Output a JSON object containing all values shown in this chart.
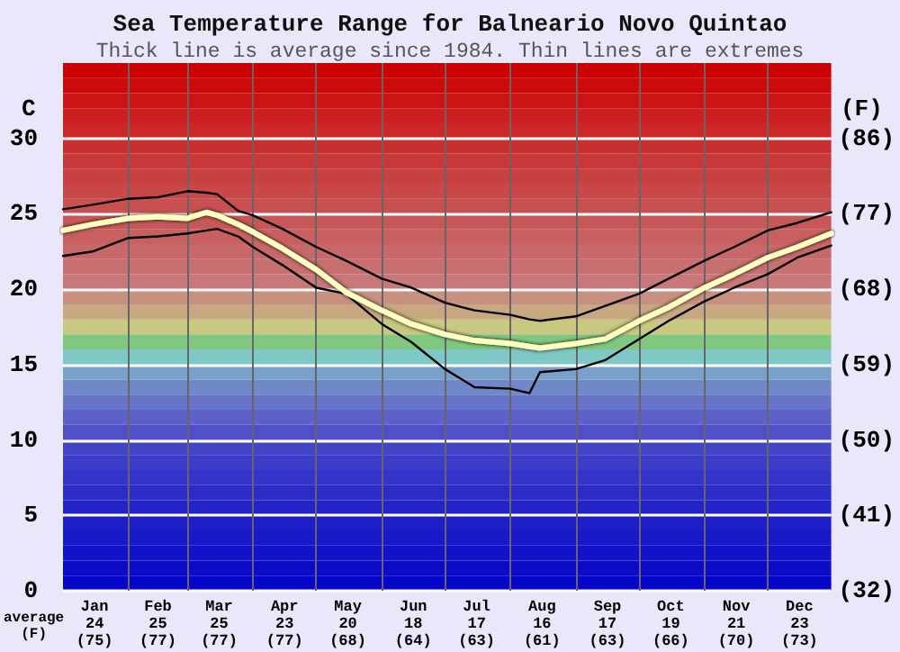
{
  "chart_data": {
    "type": "line",
    "title": "Sea Temperature Range for Balneario Novo Quintao",
    "subtitle": "Thick line is average since 1984. Thin lines are extremes",
    "ylabel": "C",
    "y2label": "(F)",
    "annotations": [
      "average\n(F)"
    ],
    "xlim": [
      "--01-01",
      "--12-31"
    ],
    "xticks": [
      {
        "value": "--01-16",
        "label": "Jan\n24\n(75)"
      },
      {
        "value": "--02-01",
        "label": null
      },
      {
        "value": "--02-15",
        "label": "Feb\n25\n(77)"
      },
      {
        "value": "--03-01",
        "label": null
      },
      {
        "value": "--03-16",
        "label": "Mar\n25\n(77)"
      },
      {
        "value": "--04-01",
        "label": null
      },
      {
        "value": "--04-16",
        "label": "Apr\n23\n(77)"
      },
      {
        "value": "--05-01",
        "label": null
      },
      {
        "value": "--05-16",
        "label": "May\n20\n(68)"
      },
      {
        "value": "--06-01",
        "label": null
      },
      {
        "value": "--06-16",
        "label": "Jun\n18\n(64)"
      },
      {
        "value": "--07-01",
        "label": null
      },
      {
        "value": "--07-16",
        "label": "Jul\n17\n(63)"
      },
      {
        "value": "--08-01",
        "label": null
      },
      {
        "value": "--08-16",
        "label": "Aug\n16\n(61)"
      },
      {
        "value": "--09-01",
        "label": null
      },
      {
        "value": "--09-16",
        "label": "Sep\n17\n(63)"
      },
      {
        "value": "--10-01",
        "label": null
      },
      {
        "value": "--10-16",
        "label": "Oct\n19\n(66)"
      },
      {
        "value": "--11-01",
        "label": null
      },
      {
        "value": "--11-16",
        "label": "Nov\n21\n(70)"
      },
      {
        "value": "--12-01",
        "label": null
      },
      {
        "value": "--12-16",
        "label": "Dec\n23\n(73)"
      }
    ],
    "ylim": [
      0,
      35
    ],
    "yticks": [
      0,
      5,
      10,
      15,
      20,
      25,
      30
    ],
    "y2lim": [
      32,
      95
    ],
    "y2ticks": [
      {
        "value": 32,
        "label": "(32)"
      },
      {
        "value": 41,
        "label": "(41)"
      },
      {
        "value": 50,
        "label": "(50)"
      },
      {
        "value": 59,
        "label": "(59)"
      },
      {
        "value": 68,
        "label": "(68)"
      },
      {
        "value": 77,
        "label": "(77)"
      },
      {
        "value": 86,
        "label": "(86)"
      }
    ],
    "grid": true,
    "marker": "none",
    "line_style": "solid",
    "x": [
      "--01-01",
      "--01-15",
      "--02-01",
      "--02-15",
      "--03-01",
      "--03-10",
      "--03-15",
      "--03-25",
      "--04-01",
      "--04-15",
      "--05-01",
      "--05-15",
      "--06-01",
      "--06-15",
      "--07-01",
      "--07-15",
      "--08-01",
      "--08-10",
      "--08-15",
      "--09-01",
      "--09-15",
      "--10-01",
      "--10-15",
      "--11-01",
      "--11-15",
      "--12-01",
      "--12-15",
      "--12-31"
    ],
    "series": [
      {
        "color": "#000000",
        "values": [
          25.3,
          25.6,
          26.0,
          26.1,
          26.5,
          26.4,
          26.3,
          25.2,
          24.9,
          24.0,
          22.8,
          21.9,
          20.7,
          20.1,
          19.1,
          18.6,
          18.3,
          18.0,
          17.9,
          18.2,
          18.9,
          19.7,
          20.7,
          21.9,
          22.8,
          23.9,
          24.4,
          25.1
        ]
      },
      {
        "color": "#000000",
        "values": [
          22.2,
          22.5,
          23.4,
          23.5,
          23.7,
          23.9,
          24.0,
          23.5,
          22.8,
          21.6,
          20.1,
          19.7,
          17.7,
          16.5,
          14.7,
          13.5,
          13.4,
          13.1,
          14.5,
          14.7,
          15.3,
          16.7,
          17.9,
          19.2,
          20.1,
          21.0,
          22.1,
          22.9
        ]
      },
      {
        "color": "#ffffc0",
        "values": [
          23.9,
          24.3,
          24.7,
          24.8,
          24.7,
          25.1,
          24.9,
          24.3,
          23.8,
          22.7,
          21.3,
          19.8,
          18.6,
          17.7,
          17.0,
          16.6,
          16.4,
          16.2,
          16.1,
          16.4,
          16.7,
          17.9,
          18.8,
          20.1,
          21.0,
          22.1,
          22.8,
          23.7
        ]
      }
    ],
    "bands": [
      {
        "axis": "y",
        "from": 0,
        "to": 1,
        "color": "#0606c8"
      },
      {
        "axis": "y",
        "from": 1,
        "to": 2,
        "color": "#0c0cc8"
      },
      {
        "axis": "y",
        "from": 2,
        "to": 3,
        "color": "#1212c8"
      },
      {
        "axis": "y",
        "from": 3,
        "to": 4,
        "color": "#1818c8"
      },
      {
        "axis": "y",
        "from": 4,
        "to": 5,
        "color": "#1e1ec8"
      },
      {
        "axis": "y",
        "from": 5,
        "to": 6,
        "color": "#2424c8"
      },
      {
        "axis": "y",
        "from": 6,
        "to": 7,
        "color": "#2c2cc8"
      },
      {
        "axis": "y",
        "from": 7,
        "to": 8,
        "color": "#3434c8"
      },
      {
        "axis": "y",
        "from": 8,
        "to": 9,
        "color": "#3c3cc8"
      },
      {
        "axis": "y",
        "from": 9,
        "to": 10,
        "color": "#4444c8"
      },
      {
        "axis": "y",
        "from": 10,
        "to": 11,
        "color": "#5050c8"
      },
      {
        "axis": "y",
        "from": 11,
        "to": 12,
        "color": "#5c60c8"
      },
      {
        "axis": "y",
        "from": 12,
        "to": 13,
        "color": "#6874c8"
      },
      {
        "axis": "y",
        "from": 13,
        "to": 14,
        "color": "#7088c8"
      },
      {
        "axis": "y",
        "from": 14,
        "to": 15,
        "color": "#78a0c8"
      },
      {
        "axis": "y",
        "from": 15,
        "to": 16,
        "color": "#80c8c8"
      },
      {
        "axis": "y",
        "from": 16,
        "to": 17,
        "color": "#80c880"
      },
      {
        "axis": "y",
        "from": 17,
        "to": 18,
        "color": "#c8c880"
      },
      {
        "axis": "y",
        "from": 18,
        "to": 19,
        "color": "#c8a880"
      },
      {
        "axis": "y",
        "from": 19,
        "to": 20,
        "color": "#c89080"
      },
      {
        "axis": "y",
        "from": 20,
        "to": 21,
        "color": "#c87878"
      },
      {
        "axis": "y",
        "from": 21,
        "to": 22,
        "color": "#c87070"
      },
      {
        "axis": "y",
        "from": 22,
        "to": 23,
        "color": "#c86868"
      },
      {
        "axis": "y",
        "from": 23,
        "to": 24,
        "color": "#c86060"
      },
      {
        "axis": "y",
        "from": 24,
        "to": 25,
        "color": "#c85858"
      },
      {
        "axis": "y",
        "from": 25,
        "to": 26,
        "color": "#c85050"
      },
      {
        "axis": "y",
        "from": 26,
        "to": 27,
        "color": "#c84848"
      },
      {
        "axis": "y",
        "from": 27,
        "to": 28,
        "color": "#c84040"
      },
      {
        "axis": "y",
        "from": 28,
        "to": 29,
        "color": "#c83838"
      },
      {
        "axis": "y",
        "from": 29,
        "to": 30,
        "color": "#c83030"
      },
      {
        "axis": "y",
        "from": 30,
        "to": 31,
        "color": "#cc2828"
      },
      {
        "axis": "y",
        "from": 31,
        "to": 32,
        "color": "#cc2020"
      },
      {
        "axis": "y",
        "from": 32,
        "to": 33,
        "color": "#cc1414"
      },
      {
        "axis": "y",
        "from": 33,
        "to": 34,
        "color": "#cc0a0a"
      },
      {
        "axis": "y",
        "from": 34,
        "to": 35,
        "color": "#cc0000"
      }
    ]
  }
}
